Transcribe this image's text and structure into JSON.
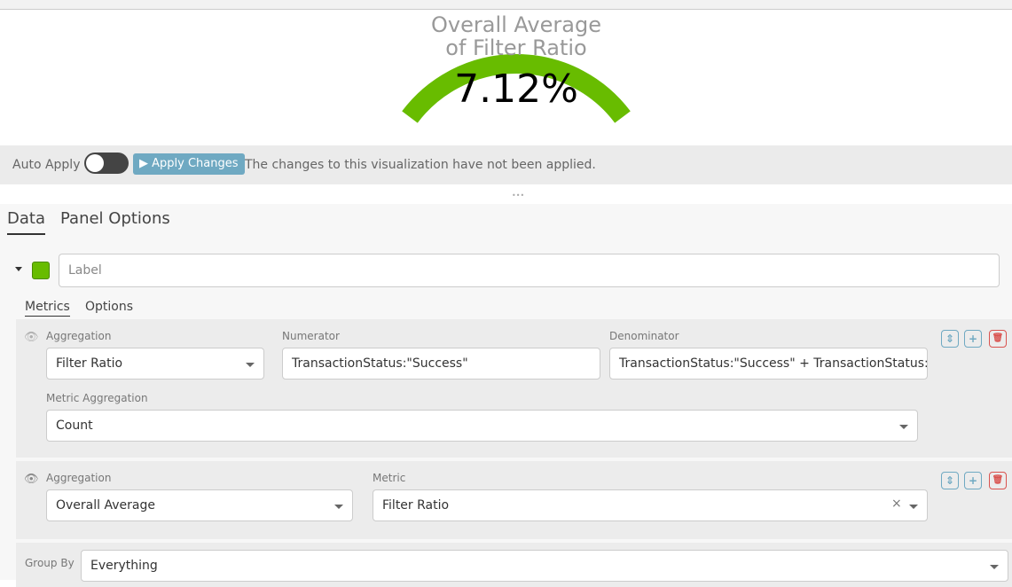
{
  "gauge": {
    "title_line1": "Overall Average",
    "title_line2": "of Filter Ratio",
    "value": "7.12%",
    "color": "#68bc00",
    "fill_fraction": 0.0712
  },
  "applybar": {
    "auto_apply": "Auto Apply",
    "auto_apply_on": false,
    "apply_button": "▶ Apply Changes",
    "message": "The changes to this visualization have not been applied."
  },
  "tabs": [
    {
      "label": "Data",
      "active": true
    },
    {
      "label": "Panel Options",
      "active": false
    }
  ],
  "series": {
    "label_placeholder": "Label",
    "color": "#68bc00",
    "subtabs": [
      "Metrics",
      "Options"
    ]
  },
  "metric1": {
    "aggregation_label": "Aggregation",
    "aggregation": "Filter Ratio",
    "numerator_label": "Numerator",
    "numerator": "TransactionStatus:\"Success\"",
    "denominator_label": "Denominator",
    "denominator": "TransactionStatus:\"Success\" + TransactionStatus:\"Fa",
    "metric_agg_label": "Metric Aggregation",
    "metric_agg": "Count"
  },
  "metric2": {
    "aggregation_label": "Aggregation",
    "aggregation": "Overall Average",
    "metric_label": "Metric",
    "metric": "Filter Ratio",
    "clear": "×"
  },
  "groupby": {
    "label": "Group By",
    "value": "Everything"
  },
  "icons": {
    "sort": "⇕",
    "add": "+",
    "delete": "🗑",
    "eye": "👁"
  }
}
